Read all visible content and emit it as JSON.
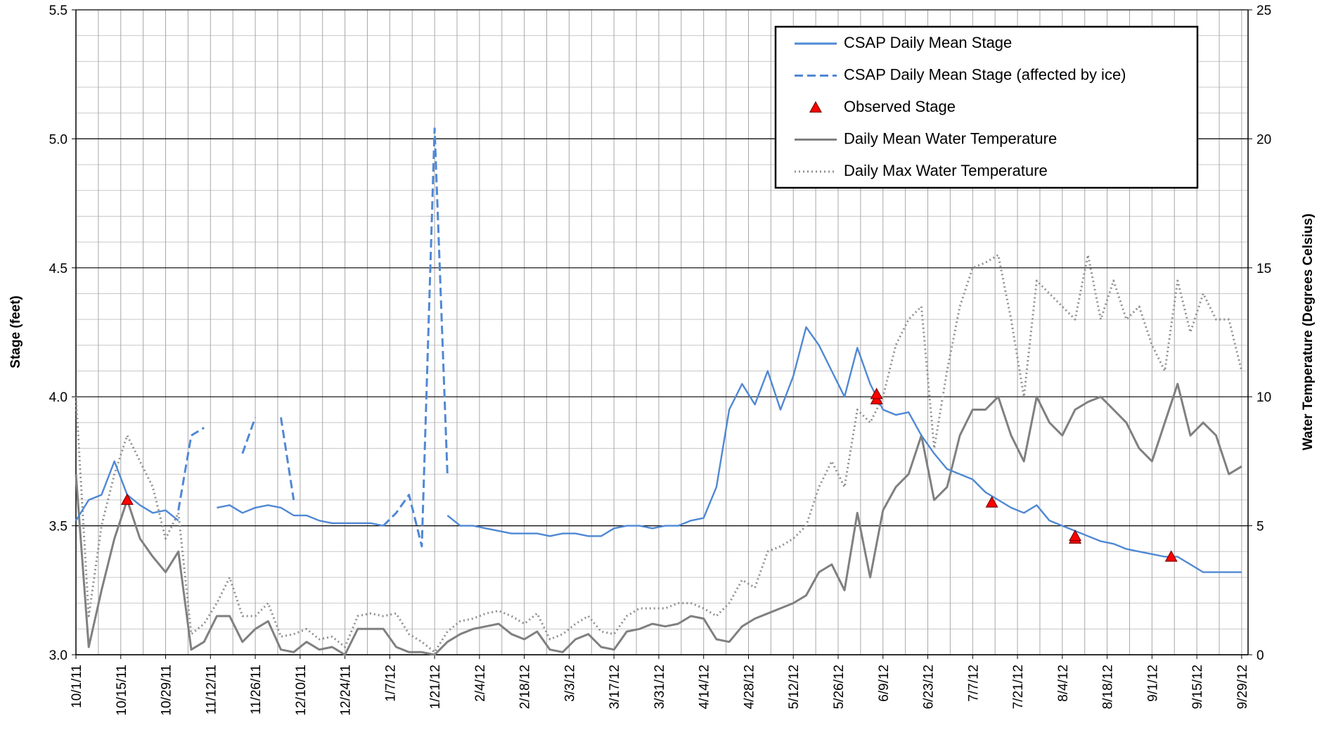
{
  "chart_data": {
    "type": "line",
    "ylabel": "Stage (feet)",
    "y2label": "Water Temperature (Degrees Celsius)",
    "xlim": [
      "2011-10-01",
      "2012-10-01"
    ],
    "xticks": [
      {
        "value": "2011-10-01",
        "label": "10/1/11"
      },
      {
        "value": "2011-10-15",
        "label": "10/15/11"
      },
      {
        "value": "2011-10-29",
        "label": "10/29/11"
      },
      {
        "value": "2011-11-12",
        "label": "11/12/11"
      },
      {
        "value": "2011-11-26",
        "label": "11/26/11"
      },
      {
        "value": "2011-12-10",
        "label": "12/10/11"
      },
      {
        "value": "2011-12-24",
        "label": "12/24/11"
      },
      {
        "value": "2012-01-07",
        "label": "1/7/12"
      },
      {
        "value": "2012-01-21",
        "label": "1/21/12"
      },
      {
        "value": "2012-02-04",
        "label": "2/4/12"
      },
      {
        "value": "2012-02-18",
        "label": "2/18/12"
      },
      {
        "value": "2012-03-03",
        "label": "3/3/12"
      },
      {
        "value": "2012-03-17",
        "label": "3/17/12"
      },
      {
        "value": "2012-03-31",
        "label": "3/31/12"
      },
      {
        "value": "2012-04-14",
        "label": "4/14/12"
      },
      {
        "value": "2012-04-28",
        "label": "4/28/12"
      },
      {
        "value": "2012-05-12",
        "label": "5/12/12"
      },
      {
        "value": "2012-05-26",
        "label": "5/26/12"
      },
      {
        "value": "2012-06-09",
        "label": "6/9/12"
      },
      {
        "value": "2012-06-23",
        "label": "6/23/12"
      },
      {
        "value": "2012-07-07",
        "label": "7/7/12"
      },
      {
        "value": "2012-07-21",
        "label": "7/21/12"
      },
      {
        "value": "2012-08-04",
        "label": "8/4/12"
      },
      {
        "value": "2012-08-18",
        "label": "8/18/12"
      },
      {
        "value": "2012-09-01",
        "label": "9/1/12"
      },
      {
        "value": "2012-09-15",
        "label": "9/15/12"
      },
      {
        "value": "2012-09-29",
        "label": "9/29/12"
      }
    ],
    "ylim": [
      3,
      5.5
    ],
    "yticks": [
      {
        "value": 3,
        "label": "3.0"
      },
      {
        "value": 3.5,
        "label": "3.5"
      },
      {
        "value": 4,
        "label": "4.0"
      },
      {
        "value": 4.5,
        "label": "4.5"
      },
      {
        "value": 5,
        "label": "5.0"
      },
      {
        "value": 5.5,
        "label": "5.5"
      }
    ],
    "y2lim": [
      0,
      25
    ],
    "y2ticks": [
      0,
      5,
      10,
      15,
      20,
      25
    ],
    "grid": true,
    "legend": "upper right",
    "x": [
      "2011-10-01",
      "2011-10-05",
      "2011-10-09",
      "2011-10-13",
      "2011-10-17",
      "2011-10-21",
      "2011-10-25",
      "2011-10-29",
      "2011-11-02",
      "2011-11-06",
      "2011-11-10",
      "2011-11-14",
      "2011-11-18",
      "2011-11-22",
      "2011-11-26",
      "2011-11-30",
      "2011-12-04",
      "2011-12-08",
      "2011-12-12",
      "2011-12-16",
      "2011-12-20",
      "2011-12-24",
      "2011-12-28",
      "2012-01-01",
      "2012-01-05",
      "2012-01-09",
      "2012-01-13",
      "2012-01-17",
      "2012-01-21",
      "2012-01-25",
      "2012-01-29",
      "2012-02-02",
      "2012-02-06",
      "2012-02-10",
      "2012-02-14",
      "2012-02-18",
      "2012-02-22",
      "2012-02-26",
      "2012-03-01",
      "2012-03-05",
      "2012-03-09",
      "2012-03-13",
      "2012-03-17",
      "2012-03-21",
      "2012-03-25",
      "2012-03-29",
      "2012-04-02",
      "2012-04-06",
      "2012-04-10",
      "2012-04-14",
      "2012-04-18",
      "2012-04-22",
      "2012-04-26",
      "2012-04-30",
      "2012-05-04",
      "2012-05-08",
      "2012-05-12",
      "2012-05-16",
      "2012-05-20",
      "2012-05-24",
      "2012-05-28",
      "2012-06-01",
      "2012-06-05",
      "2012-06-09",
      "2012-06-13",
      "2012-06-17",
      "2012-06-21",
      "2012-06-25",
      "2012-06-29",
      "2012-07-03",
      "2012-07-07",
      "2012-07-11",
      "2012-07-15",
      "2012-07-19",
      "2012-07-23",
      "2012-07-27",
      "2012-07-31",
      "2012-08-04",
      "2012-08-08",
      "2012-08-12",
      "2012-08-16",
      "2012-08-20",
      "2012-08-24",
      "2012-08-28",
      "2012-09-01",
      "2012-09-05",
      "2012-09-09",
      "2012-09-13",
      "2012-09-17",
      "2012-09-21",
      "2012-09-25",
      "2012-09-29"
    ],
    "series": [
      {
        "name": "CSAP Daily Mean Stage",
        "color": "#4f88d4",
        "style": "solid",
        "axis": "y",
        "values": [
          3.52,
          3.6,
          3.62,
          3.75,
          3.62,
          3.58,
          3.55,
          3.56,
          3.52,
          null,
          null,
          3.57,
          3.58,
          3.55,
          3.57,
          3.58,
          3.57,
          3.54,
          3.54,
          3.52,
          3.51,
          3.51,
          3.51,
          3.51,
          3.5,
          null,
          null,
          null,
          null,
          3.54,
          3.5,
          3.5,
          3.49,
          3.48,
          3.47,
          3.47,
          3.47,
          3.46,
          3.47,
          3.47,
          3.46,
          3.46,
          3.49,
          3.5,
          3.5,
          3.49,
          3.5,
          3.5,
          3.52,
          3.53,
          3.65,
          3.95,
          4.05,
          3.97,
          4.1,
          3.95,
          4.08,
          4.27,
          4.2,
          4.1,
          4.0,
          4.19,
          4.05,
          3.95,
          3.93,
          3.94,
          3.85,
          3.78,
          3.72,
          3.7,
          3.68,
          3.63,
          3.6,
          3.57,
          3.55,
          3.58,
          3.52,
          3.5,
          3.48,
          3.46,
          3.44,
          3.43,
          3.41,
          3.4,
          3.39,
          3.38,
          3.38,
          3.35,
          3.32,
          3.32,
          3.32,
          3.32
        ]
      },
      {
        "name": "CSAP Daily Mean Stage (affected by ice)",
        "color": "#4f88d4",
        "style": "dashed",
        "axis": "y",
        "values": [
          null,
          null,
          null,
          null,
          null,
          null,
          null,
          null,
          3.56,
          3.85,
          3.88,
          null,
          null,
          3.78,
          3.92,
          null,
          3.92,
          3.6,
          null,
          null,
          null,
          null,
          null,
          null,
          3.5,
          3.55,
          3.62,
          3.42,
          5.04,
          3.7,
          null,
          null,
          null,
          null,
          null,
          null,
          null,
          null,
          null,
          null,
          null,
          null,
          null,
          null,
          null,
          null,
          null,
          null,
          null,
          null,
          null,
          null,
          null,
          null,
          null,
          null,
          null,
          null,
          null,
          null,
          null,
          null,
          null,
          null,
          null,
          null,
          null,
          null,
          null,
          null,
          null,
          null,
          null,
          null,
          null,
          null,
          null,
          null,
          null,
          null,
          null,
          null,
          null,
          null,
          null,
          null,
          null,
          null,
          null,
          null,
          null,
          null
        ]
      },
      {
        "name": "Observed Stage",
        "color": "#ff0000",
        "style": "marker",
        "marker": "triangle",
        "axis": "y",
        "x": [
          "2011-10-17",
          "2012-06-07",
          "2012-06-07",
          "2012-07-13",
          "2012-08-08",
          "2012-08-08",
          "2012-09-07"
        ],
        "values": [
          3.6,
          3.99,
          4.01,
          3.59,
          3.45,
          3.46,
          3.38
        ]
      },
      {
        "name": "Daily Mean Water Temperature",
        "color": "#808080",
        "style": "solid",
        "axis": "y2",
        "values": [
          7,
          0.3,
          2.5,
          4.5,
          6,
          4.5,
          3.8,
          3.2,
          4,
          0.2,
          0.5,
          1.5,
          1.5,
          0.5,
          1,
          1.3,
          0.2,
          0.1,
          0.5,
          0.2,
          0.3,
          0,
          1,
          1,
          1,
          0.3,
          0.1,
          0.1,
          0,
          0.5,
          0.8,
          1,
          1.1,
          1.2,
          0.8,
          0.6,
          0.9,
          0.2,
          0.1,
          0.6,
          0.8,
          0.3,
          0.2,
          0.9,
          1,
          1.2,
          1.1,
          1.2,
          1.5,
          1.4,
          0.6,
          0.5,
          1.1,
          1.4,
          1.6,
          1.8,
          2,
          2.3,
          3.2,
          3.5,
          2.5,
          5.5,
          3,
          5.6,
          6.5,
          7,
          8.5,
          6,
          6.5,
          8.5,
          9.5,
          9.5,
          10,
          8.5,
          7.5,
          10,
          9,
          8.5,
          9.5,
          9.8,
          10,
          9.5,
          9,
          8,
          7.5,
          9,
          10.5,
          8.5,
          9,
          8.5,
          7,
          7.3
        ]
      },
      {
        "name": "Daily Max Water Temperature",
        "color": "#909090",
        "style": "dotted",
        "axis": "y2",
        "values": [
          10,
          1.5,
          5,
          7,
          8.5,
          7.5,
          6.5,
          4.5,
          5.5,
          0.8,
          1.2,
          2,
          3,
          1.5,
          1.5,
          2,
          0.7,
          0.8,
          1,
          0.6,
          0.7,
          0.3,
          1.5,
          1.6,
          1.5,
          1.6,
          0.8,
          0.5,
          0.1,
          0.9,
          1.3,
          1.4,
          1.6,
          1.7,
          1.5,
          1.2,
          1.6,
          0.6,
          0.8,
          1.2,
          1.5,
          0.9,
          0.8,
          1.5,
          1.8,
          1.8,
          1.8,
          2,
          2,
          1.8,
          1.5,
          2,
          2.9,
          2.6,
          4,
          4.2,
          4.5,
          5,
          6.5,
          7.5,
          6.5,
          9.5,
          9,
          10,
          12,
          13,
          13.5,
          8,
          11,
          13.5,
          15,
          15.2,
          15.5,
          13,
          10,
          14.5,
          14,
          13.5,
          13,
          15.5,
          13,
          14.5,
          13,
          13.5,
          12,
          11,
          14.5,
          12.5,
          14,
          13,
          13,
          11
        ]
      }
    ]
  }
}
